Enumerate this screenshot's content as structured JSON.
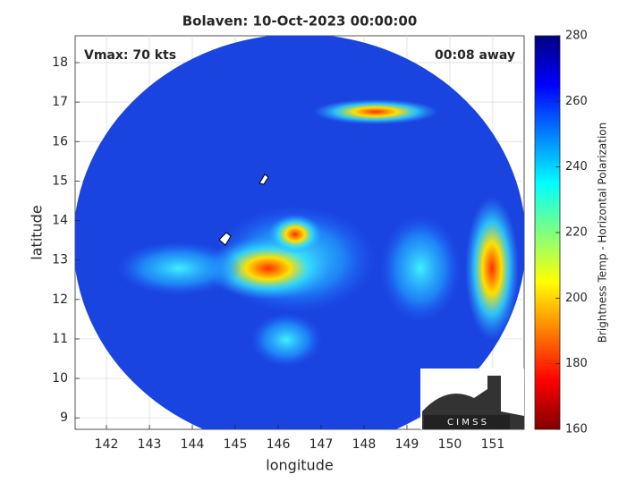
{
  "chart_data": {
    "type": "image",
    "title": "Bolaven: 10-Oct-2023 00:00:00",
    "annotations": [
      "Vmax: 70 kts",
      "00:08 away"
    ],
    "x_label": "longitude",
    "y_label": "latitude",
    "xlim": [
      141.27,
      151.73
    ],
    "xticks": [
      142,
      143,
      144,
      145,
      146,
      147,
      148,
      149,
      150,
      151
    ],
    "ylim": [
      8.71,
      18.68
    ],
    "yticks": [
      9,
      10,
      11,
      12,
      13,
      14,
      15,
      16,
      17,
      18
    ],
    "grid": true,
    "colorbar": {
      "label": "Brightness Temp - Horizontal Polarization",
      "lim": [
        160,
        280
      ],
      "ticks": [
        160,
        180,
        200,
        220,
        240,
        260,
        280
      ],
      "colormap": "jet"
    },
    "logo_text": "C I M S S"
  }
}
